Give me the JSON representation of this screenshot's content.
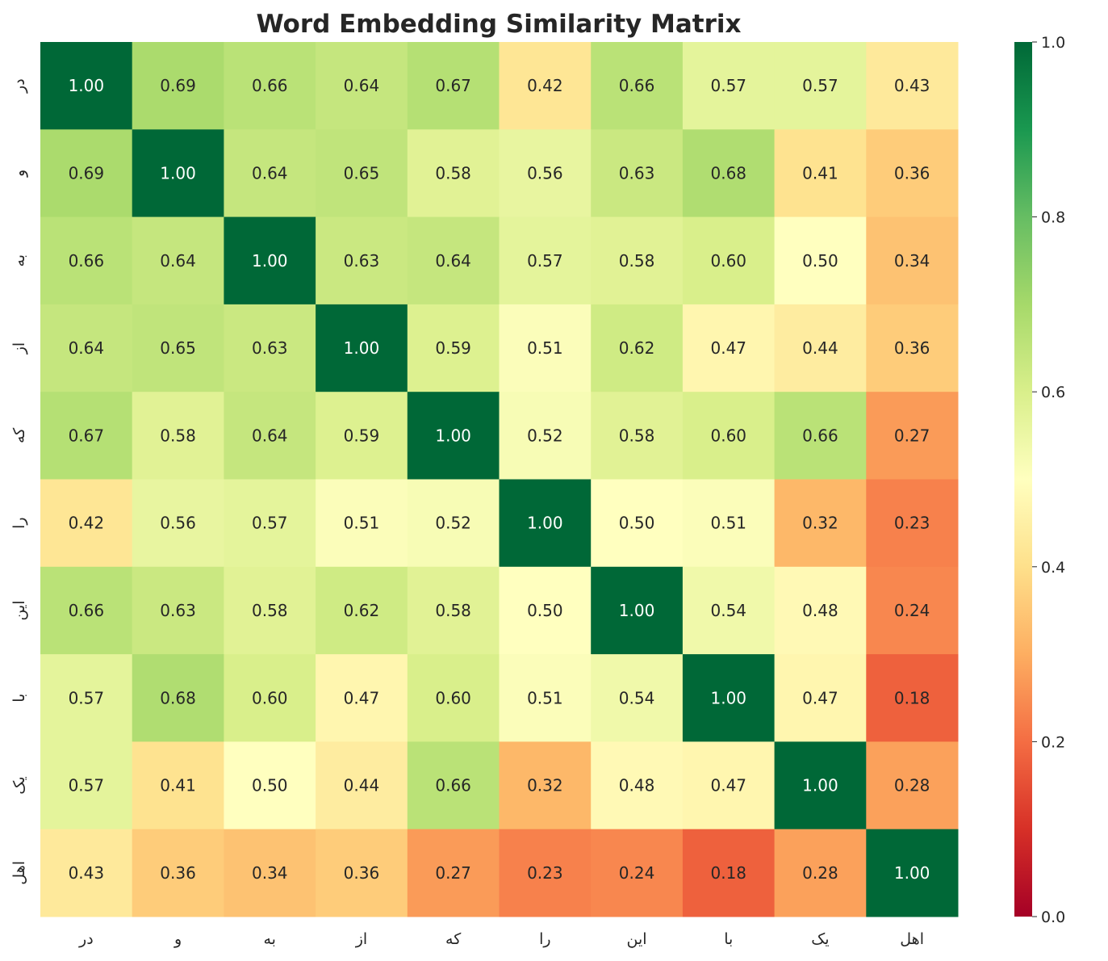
{
  "chart_data": {
    "type": "heatmap",
    "title": "Word Embedding Similarity Matrix",
    "x_labels": [
      "در",
      "و",
      "به",
      "از",
      "که",
      "را",
      "این",
      "با",
      "یک",
      "اهل"
    ],
    "y_labels": [
      "در",
      "و",
      "به",
      "از",
      "که",
      "را",
      "این",
      "با",
      "یک",
      "اهل"
    ],
    "values": [
      [
        1.0,
        0.69,
        0.66,
        0.64,
        0.67,
        0.42,
        0.66,
        0.57,
        0.57,
        0.43
      ],
      [
        0.69,
        1.0,
        0.64,
        0.65,
        0.58,
        0.56,
        0.63,
        0.68,
        0.41,
        0.36
      ],
      [
        0.66,
        0.64,
        1.0,
        0.63,
        0.64,
        0.57,
        0.58,
        0.6,
        0.5,
        0.34
      ],
      [
        0.64,
        0.65,
        0.63,
        1.0,
        0.59,
        0.51,
        0.62,
        0.47,
        0.44,
        0.36
      ],
      [
        0.67,
        0.58,
        0.64,
        0.59,
        1.0,
        0.52,
        0.58,
        0.6,
        0.66,
        0.27
      ],
      [
        0.42,
        0.56,
        0.57,
        0.51,
        0.52,
        1.0,
        0.5,
        0.51,
        0.32,
        0.23
      ],
      [
        0.66,
        0.63,
        0.58,
        0.62,
        0.58,
        0.5,
        1.0,
        0.54,
        0.48,
        0.24
      ],
      [
        0.57,
        0.68,
        0.6,
        0.47,
        0.6,
        0.51,
        0.54,
        1.0,
        0.47,
        0.18
      ],
      [
        0.57,
        0.41,
        0.5,
        0.44,
        0.66,
        0.32,
        0.48,
        0.47,
        1.0,
        0.28
      ],
      [
        0.43,
        0.36,
        0.34,
        0.36,
        0.27,
        0.23,
        0.24,
        0.18,
        0.28,
        1.0
      ]
    ],
    "colormap": "RdYlGn",
    "colormap_stops": [
      "#a50026",
      "#d73027",
      "#f46d43",
      "#fdae61",
      "#fee08b",
      "#ffffbf",
      "#d9ef8b",
      "#a6d96a",
      "#66bd63",
      "#1a9850",
      "#006837"
    ],
    "vmin": 0.0,
    "vmax": 1.0,
    "colorbar_ticks": [
      "0.0",
      "0.2",
      "0.4",
      "0.6",
      "0.8",
      "1.0"
    ],
    "annotation_format": "2 decimals"
  }
}
